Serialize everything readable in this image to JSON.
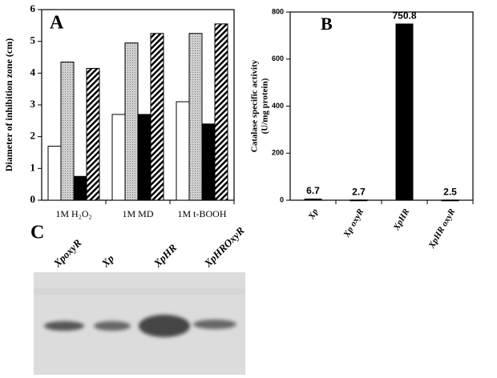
{
  "chart_data": [
    {
      "type": "bar",
      "panel": "A",
      "ylabel": "Diameter of inhibition zone (cm)",
      "categories": [
        "1M H₂O₂",
        "1M MD",
        "1M t-BOOH"
      ],
      "series": [
        {
          "color": "#ffffff",
          "values": [
            1.7,
            2.7,
            3.1
          ]
        },
        {
          "color": "#c8c8c8",
          "values": [
            4.35,
            4.95,
            5.25
          ]
        },
        {
          "color": "#000000",
          "values": [
            0.75,
            2.7,
            2.4
          ]
        },
        {
          "color": "#000000",
          "hatch": true,
          "values": [
            4.15,
            5.25,
            5.55
          ]
        }
      ],
      "ylim": [
        0,
        6
      ],
      "yticks": [
        0,
        1,
        2,
        3,
        4,
        5,
        6
      ]
    },
    {
      "type": "bar",
      "panel": "B",
      "ylabel": [
        "Catalase specific activity",
        "(U/mg protein)"
      ],
      "categories": [
        "Xp",
        "Xp oxyR",
        "XpHR",
        "XpHR oxyR"
      ],
      "values": [
        6.7,
        2.7,
        750.8,
        2.5
      ],
      "color": "#000000",
      "ylim": [
        0,
        800
      ],
      "yticks": [
        0,
        200,
        400,
        600,
        800
      ]
    }
  ],
  "gel": {
    "panel": "C",
    "lanes": [
      "XpoxyR",
      "Xp",
      "XpHR",
      "XpHROxyR"
    ]
  }
}
